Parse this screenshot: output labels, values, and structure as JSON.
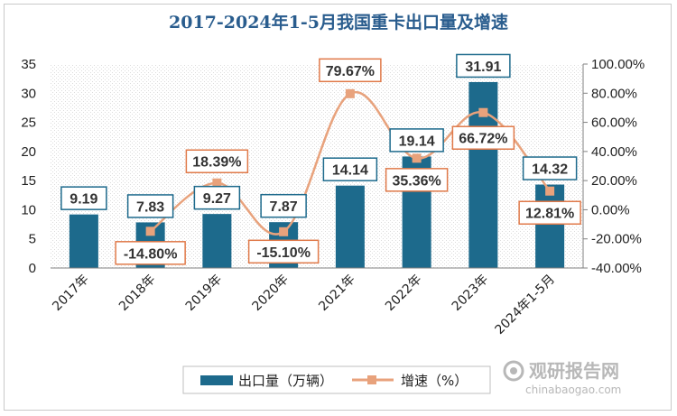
{
  "chart_data": {
    "type": "bar",
    "title": "2017-2024年1-5月我国重卡出口量及增速",
    "categories": [
      "2017年",
      "2018年",
      "2019年",
      "2020年",
      "2021年",
      "2022年",
      "2023年",
      "2024年1-5月"
    ],
    "series": [
      {
        "name": "出口量（万辆）",
        "type": "bar",
        "axis": "left",
        "values": [
          9.19,
          7.83,
          9.27,
          7.87,
          14.14,
          19.14,
          31.91,
          14.32
        ],
        "labels": [
          "9.19",
          "7.83",
          "9.27",
          "7.87",
          "14.14",
          "19.14",
          "31.91",
          "14.32"
        ],
        "color": "#1d6a8c"
      },
      {
        "name": "增速（%）",
        "type": "line",
        "axis": "right",
        "values": [
          null,
          -14.8,
          18.39,
          -15.1,
          79.67,
          35.36,
          66.72,
          12.81
        ],
        "labels": [
          "",
          "-14.80%",
          "18.39%",
          "-15.10%",
          "79.67%",
          "35.36%",
          "66.72%",
          "12.81%"
        ],
        "color": "#e8a27c"
      }
    ],
    "ylim_left": [
      0,
      35
    ],
    "yticks_left": [
      "0",
      "5",
      "10",
      "15",
      "20",
      "25",
      "30",
      "35"
    ],
    "ylim_right": [
      -40,
      100
    ],
    "yticks_right": [
      "-40.00%",
      "-20.00%",
      "0.00%",
      "20.00%",
      "40.00%",
      "60.00%",
      "80.00%",
      "100.00%"
    ],
    "legend_position": "bottom",
    "grid": false
  },
  "legend": {
    "bar": "出口量（万辆）",
    "line": "增速（%）"
  },
  "watermark": {
    "cn": "观研报告网",
    "en": "chinabaogao.com"
  },
  "colors": {
    "title": "#2a5d8e",
    "bar": "#1d6a8c",
    "line": "#e8a27c",
    "label_box_bar": "#1d6a8c",
    "label_box_line": "#e07a4a"
  }
}
